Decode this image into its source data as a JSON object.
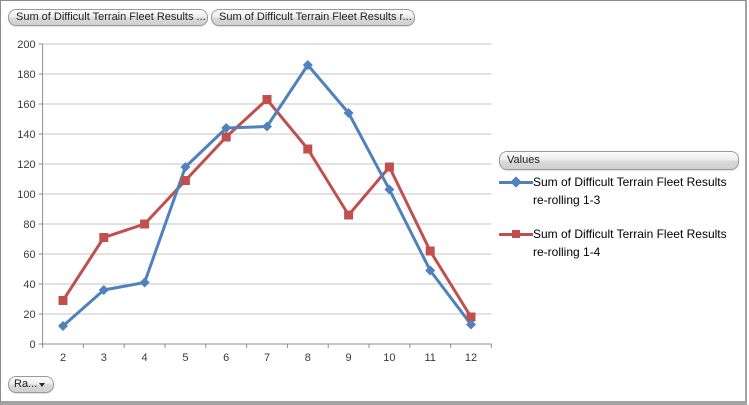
{
  "field_buttons": {
    "button1": "Sum of Difficult Terrain Fleet Results ...",
    "button2": "Sum of Difficult Terrain Fleet Results r...",
    "axis_button": "Ra...",
    "legend_button": "Values"
  },
  "legend": {
    "title": "Values",
    "position": "right",
    "entries": [
      {
        "label_line1": "Sum of Difficult Terrain Fleet Results",
        "label_line2": "re-rolling 1-3",
        "color": "#4F81BD",
        "marker": "diamond"
      },
      {
        "label_line1": "Sum of Difficult Terrain Fleet Results",
        "label_line2": "re-rolling 1-4",
        "color": "#C0504D",
        "marker": "square"
      }
    ]
  },
  "chart_data": {
    "type": "line",
    "title": "",
    "xlabel": "",
    "ylabel": "",
    "categories": [
      "2",
      "3",
      "4",
      "5",
      "6",
      "7",
      "8",
      "9",
      "10",
      "11",
      "12"
    ],
    "series": [
      {
        "name": "Sum of Difficult Terrain Fleet Results re-rolling 1-3",
        "color": "#4F81BD",
        "marker": "diamond",
        "values": [
          12,
          36,
          41,
          118,
          144,
          145,
          186,
          154,
          103,
          49,
          13
        ]
      },
      {
        "name": "Sum of Difficult Terrain Fleet Results re-rolling 1-4",
        "color": "#C0504D",
        "marker": "square",
        "values": [
          29,
          71,
          80,
          109,
          138,
          163,
          130,
          86,
          118,
          62,
          18
        ]
      }
    ],
    "ylim": [
      0,
      200
    ],
    "ytick_step": 20,
    "grid": true,
    "legend_position": "right"
  },
  "colors": {
    "gridline": "#c6c6c6",
    "axis": "#8e8e8e",
    "series1": "#4F81BD",
    "series2": "#C0504D"
  }
}
